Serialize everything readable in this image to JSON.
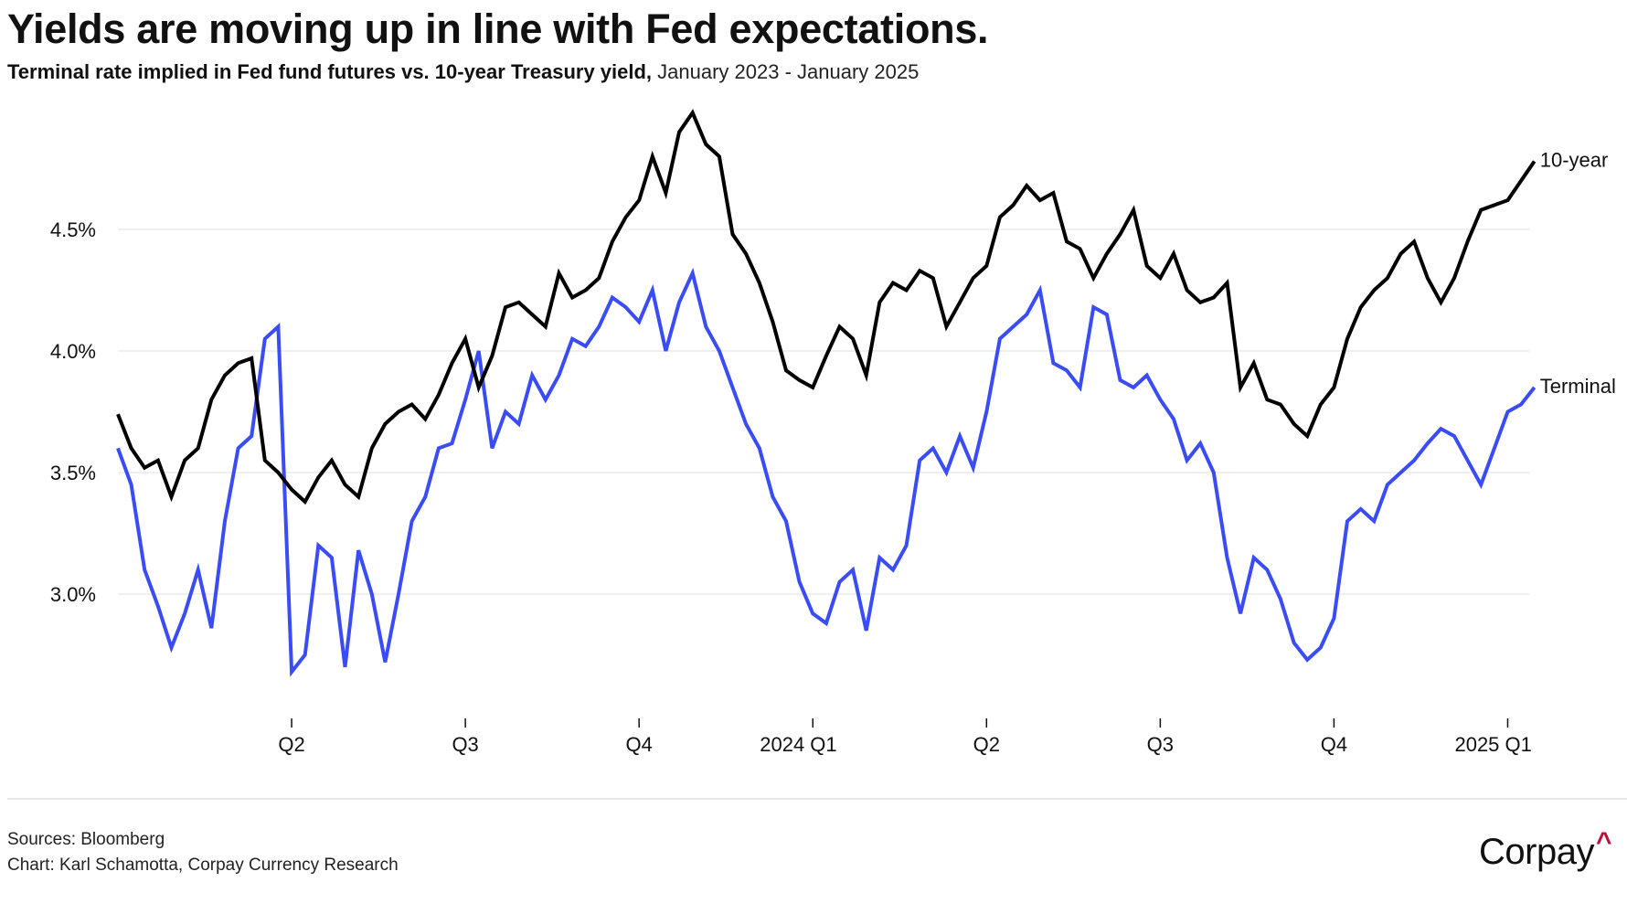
{
  "header": {
    "title": "Yields are moving up in line with Fed expectations.",
    "subtitle_bold": "Terminal rate implied in Fed fund futures vs. 10-year Treasury yield,",
    "subtitle_dates": " January 2023 - January 2025"
  },
  "footer": {
    "source": "Sources: Bloomberg",
    "credit": "Chart: Karl Schamotta, Corpay Currency Research",
    "logo": "Corpay",
    "logo_mark": "^"
  },
  "colors": {
    "ten_year": "#000000",
    "terminal": "#3a4cf5",
    "grid": "#ececec",
    "logo_mark": "#c0103a"
  },
  "chart_data": {
    "type": "line",
    "title": "Yields are moving up in line with Fed expectations.",
    "subtitle": "Terminal rate implied in Fed fund futures vs. 10-year Treasury yield, January 2023 - January 2025",
    "xlabel": "",
    "ylabel": "",
    "x_frequency": "weekly",
    "x_range": [
      "2023-01-03",
      "2025-01-14"
    ],
    "x_ticks": [
      "Q2",
      "Q3",
      "Q4",
      "2024 Q1",
      "Q2",
      "Q3",
      "Q4",
      "2025 Q1"
    ],
    "x_tick_positions_weeks": [
      13,
      26,
      39,
      52,
      65,
      78,
      91,
      104
    ],
    "y_ticks": [
      3.0,
      3.5,
      4.0,
      4.5
    ],
    "y_tick_labels": [
      "3.0%",
      "3.5%",
      "4.0%",
      "4.5%"
    ],
    "ylim": [
      2.5,
      5.0
    ],
    "grid": true,
    "legend": "direct-labels-right",
    "series": [
      {
        "name": "10-year",
        "color": "#000000",
        "values": [
          3.74,
          3.6,
          3.52,
          3.55,
          3.4,
          3.55,
          3.6,
          3.8,
          3.9,
          3.95,
          3.97,
          3.55,
          3.5,
          3.43,
          3.38,
          3.48,
          3.55,
          3.45,
          3.4,
          3.6,
          3.7,
          3.75,
          3.78,
          3.72,
          3.82,
          3.95,
          4.05,
          3.85,
          3.98,
          4.18,
          4.2,
          4.15,
          4.1,
          4.32,
          4.22,
          4.25,
          4.3,
          4.45,
          4.55,
          4.62,
          4.8,
          4.65,
          4.9,
          4.98,
          4.85,
          4.8,
          4.48,
          4.4,
          4.28,
          4.12,
          3.92,
          3.88,
          3.85,
          3.98,
          4.1,
          4.05,
          3.9,
          4.2,
          4.28,
          4.25,
          4.33,
          4.3,
          4.1,
          4.2,
          4.3,
          4.35,
          4.55,
          4.6,
          4.68,
          4.62,
          4.65,
          4.45,
          4.42,
          4.3,
          4.4,
          4.48,
          4.58,
          4.35,
          4.3,
          4.4,
          4.25,
          4.2,
          4.22,
          4.28,
          3.85,
          3.95,
          3.8,
          3.78,
          3.7,
          3.65,
          3.78,
          3.85,
          4.05,
          4.18,
          4.25,
          4.3,
          4.4,
          4.45,
          4.3,
          4.2,
          4.3,
          4.45,
          4.58,
          4.6,
          4.62,
          4.7,
          4.78
        ]
      },
      {
        "name": "Terminal",
        "color": "#3a4cf5",
        "values": [
          3.6,
          3.45,
          3.1,
          2.95,
          2.78,
          2.92,
          3.1,
          2.86,
          3.3,
          3.6,
          3.65,
          4.05,
          4.1,
          2.68,
          2.75,
          3.2,
          3.15,
          2.7,
          3.18,
          3.0,
          2.72,
          3.0,
          3.3,
          3.4,
          3.6,
          3.62,
          3.8,
          4.0,
          3.6,
          3.75,
          3.7,
          3.9,
          3.8,
          3.9,
          4.05,
          4.02,
          4.1,
          4.22,
          4.18,
          4.12,
          4.25,
          4.0,
          4.2,
          4.32,
          4.1,
          4.0,
          3.85,
          3.7,
          3.6,
          3.4,
          3.3,
          3.05,
          2.92,
          2.88,
          3.05,
          3.1,
          2.85,
          3.15,
          3.1,
          3.2,
          3.55,
          3.6,
          3.5,
          3.65,
          3.52,
          3.75,
          4.05,
          4.1,
          4.15,
          4.25,
          3.95,
          3.92,
          3.85,
          4.18,
          4.15,
          3.88,
          3.85,
          3.9,
          3.8,
          3.72,
          3.55,
          3.62,
          3.5,
          3.15,
          2.92,
          3.15,
          3.1,
          2.98,
          2.8,
          2.73,
          2.78,
          2.9,
          3.3,
          3.35,
          3.3,
          3.45,
          3.5,
          3.55,
          3.62,
          3.68,
          3.65,
          3.55,
          3.45,
          3.6,
          3.75,
          3.78,
          3.85
        ]
      }
    ]
  }
}
